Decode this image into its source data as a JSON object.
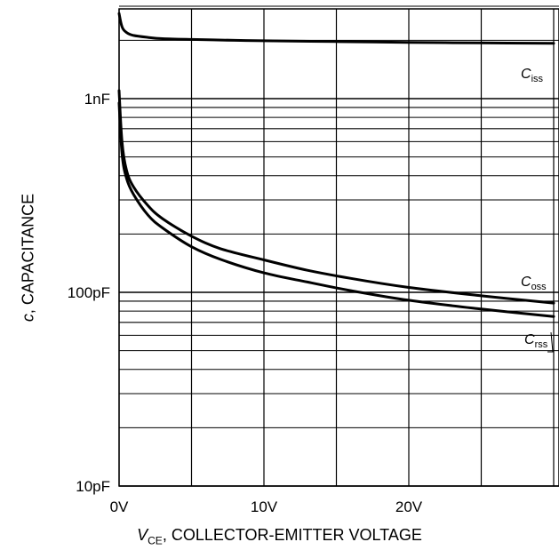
{
  "chart_data": {
    "type": "line",
    "title": "",
    "xlabel": {
      "symbol": "V",
      "subscript": "CE",
      "text": ", COLLECTOR-EMITTER VOLTAGE"
    },
    "ylabel": {
      "symbol": "c",
      "text": ", CAPACITANCE"
    },
    "x_scale": "linear",
    "y_scale": "log",
    "xlim": [
      0,
      30
    ],
    "ylim_pF": [
      10,
      3000
    ],
    "x_ticks": [
      {
        "value": 0,
        "label": "0V"
      },
      {
        "value": 10,
        "label": "10V"
      },
      {
        "value": 20,
        "label": "20V"
      }
    ],
    "y_ticks": [
      {
        "value_pF": 10,
        "label": "10pF"
      },
      {
        "value_pF": 100,
        "label": "100pF"
      },
      {
        "value_pF": 1000,
        "label": "1nF"
      }
    ],
    "grid": true,
    "series": [
      {
        "name": "C_iss",
        "label_symbol": "C",
        "label_subscript": "iss",
        "x": [
          0,
          0.2,
          0.5,
          1,
          2,
          3,
          5,
          8,
          10,
          15,
          20,
          25,
          30
        ],
        "y_pF": [
          2750,
          2350,
          2200,
          2120,
          2070,
          2040,
          2020,
          2000,
          1990,
          1970,
          1950,
          1940,
          1930
        ]
      },
      {
        "name": "C_oss",
        "label_symbol": "C",
        "label_subscript": "oss",
        "x": [
          0,
          0.2,
          0.5,
          1,
          2,
          3,
          5,
          7,
          10,
          13,
          16,
          20,
          25,
          30
        ],
        "y_pF": [
          1100,
          600,
          430,
          350,
          280,
          240,
          195,
          168,
          147,
          130,
          118,
          106,
          96,
          88
        ]
      },
      {
        "name": "C_rss",
        "label_symbol": "C",
        "label_subscript": "rss",
        "x": [
          0,
          0.2,
          0.5,
          1,
          2,
          3,
          5,
          7,
          10,
          13,
          16,
          20,
          25,
          30
        ],
        "y_pF": [
          950,
          520,
          390,
          320,
          250,
          215,
          172,
          148,
          126,
          113,
          102,
          91,
          82,
          75
        ]
      }
    ]
  }
}
